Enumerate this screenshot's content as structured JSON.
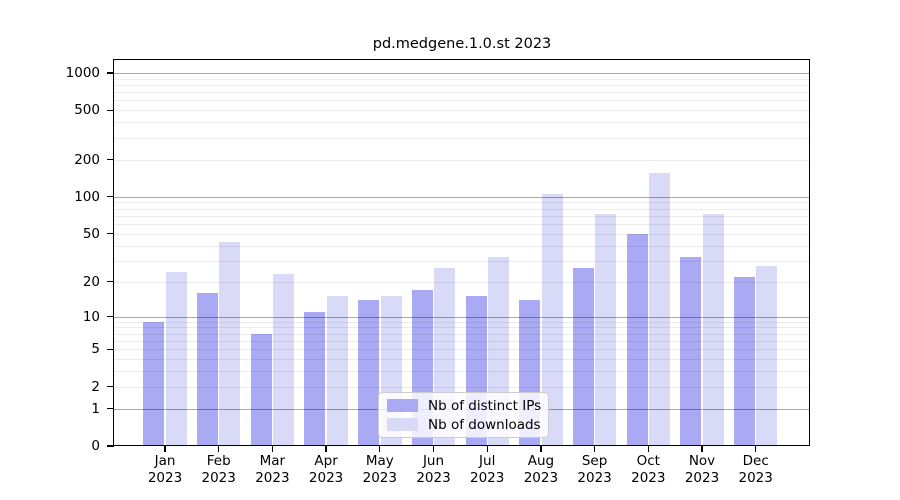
{
  "chart_data": {
    "type": "bar",
    "title": "pd.medgene.1.0.st 2023",
    "x_categories": [
      "Jan",
      "Feb",
      "Mar",
      "Apr",
      "May",
      "Jun",
      "Jul",
      "Aug",
      "Sep",
      "Oct",
      "Nov",
      "Dec"
    ],
    "x_year": "2023",
    "series": [
      {
        "name": "Nb of distinct IPs",
        "color": "#a9a9f4",
        "values": [
          9,
          16,
          7,
          11,
          14,
          17,
          15,
          14,
          26,
          50,
          32,
          22
        ]
      },
      {
        "name": "Nb of downloads",
        "color": "#d9daf8",
        "values": [
          24,
          43,
          23,
          15,
          15,
          26,
          32,
          106,
          73,
          155,
          72,
          27
        ]
      }
    ],
    "y_scale": "symlog ln(1+x)",
    "ylim": [
      0,
      1270
    ],
    "y_ticks": [
      0,
      1,
      2,
      5,
      10,
      20,
      50,
      100,
      200,
      500,
      1000
    ],
    "y_major_gridlines": [
      1,
      10,
      100,
      1000
    ],
    "y_minor_gridlines": [
      2,
      3,
      4,
      5,
      6,
      7,
      8,
      9,
      20,
      30,
      40,
      50,
      60,
      70,
      80,
      90,
      200,
      300,
      400,
      500,
      600,
      700,
      800,
      900
    ],
    "grid": true,
    "legend_position": "lower-center"
  }
}
